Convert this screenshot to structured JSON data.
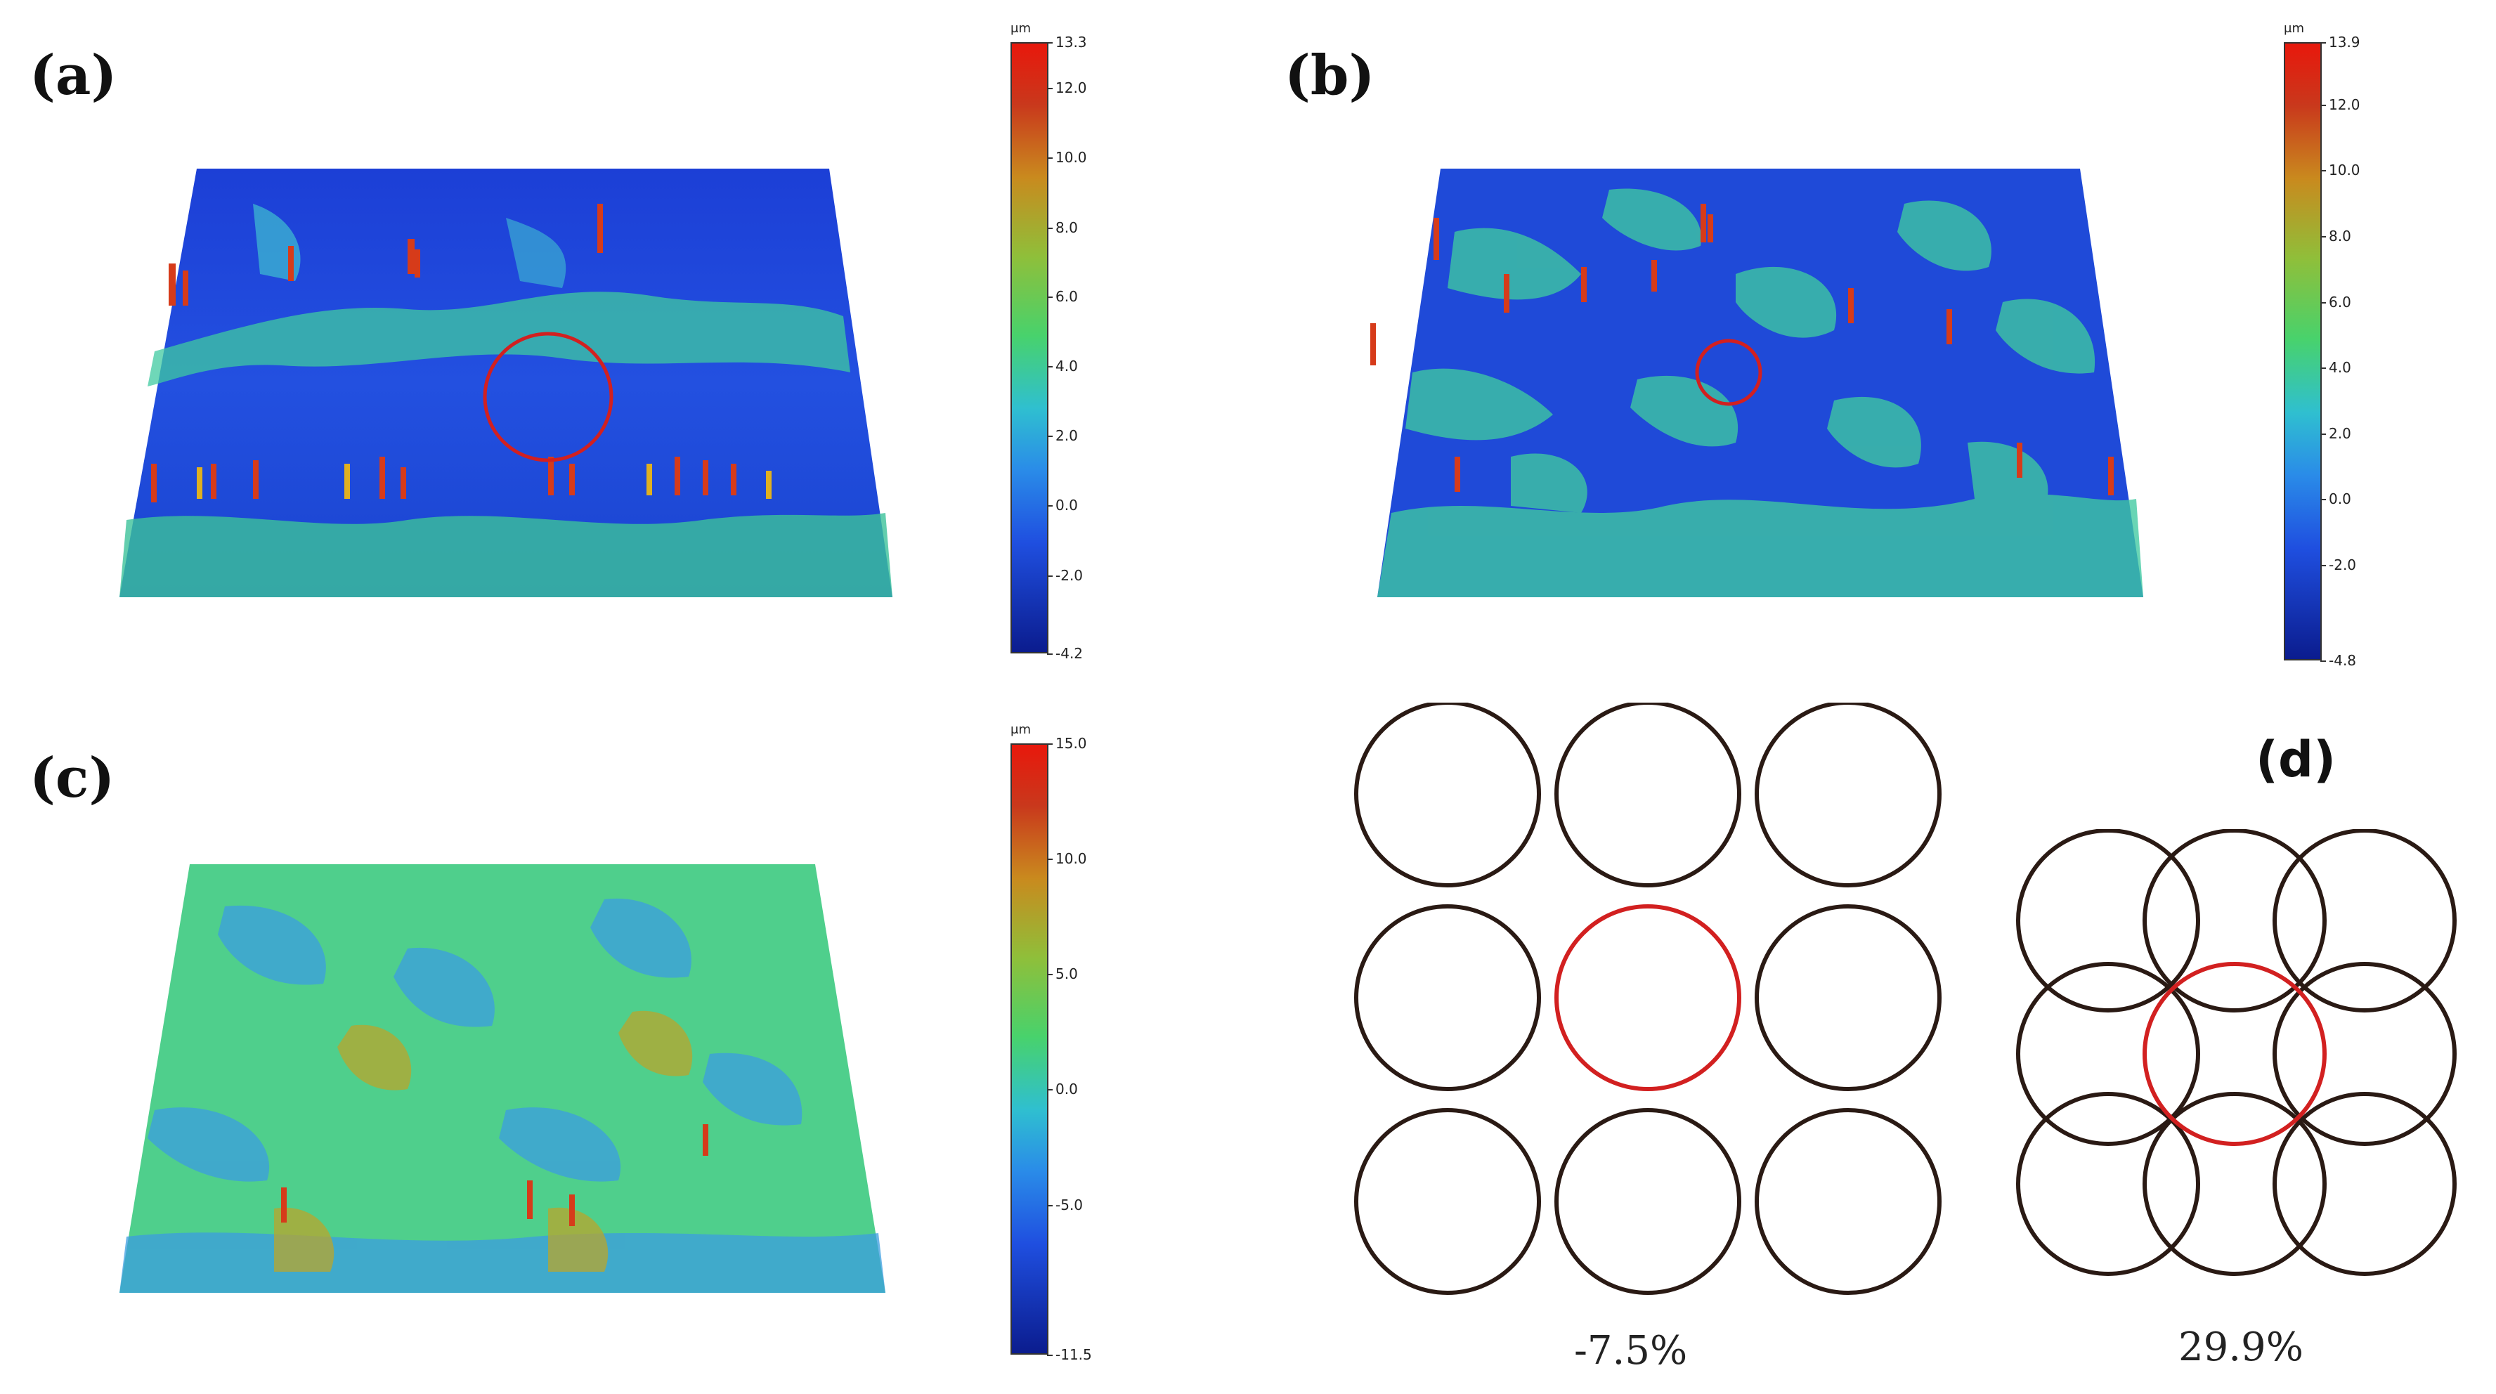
{
  "panels": {
    "a": {
      "label": "(a)",
      "unit": "μm",
      "ticks": [
        "13.3",
        "12.0",
        "10.0",
        "8.0",
        "6.0",
        "4.0",
        "2.0",
        "0.0",
        "-2.0",
        "-4.2"
      ]
    },
    "b": {
      "label": "(b)",
      "unit": "μm",
      "ticks": [
        "13.9",
        "12.0",
        "10.0",
        "8.0",
        "6.0",
        "4.0",
        "2.0",
        "0.0",
        "-2.0",
        "-4.8"
      ]
    },
    "c": {
      "label": "(c)",
      "unit": "μm",
      "ticks": [
        "15.0",
        "10.0",
        "5.0",
        "0.0",
        "-5.0",
        "-11.5"
      ]
    },
    "d": {
      "label": "(d)",
      "left_percent": "-7.5%",
      "right_percent": "29.9%"
    }
  },
  "colors": {
    "surface_base": "#1f47d8",
    "highlight_circle": "#d22020",
    "outline_circle": "#2a1a14"
  }
}
